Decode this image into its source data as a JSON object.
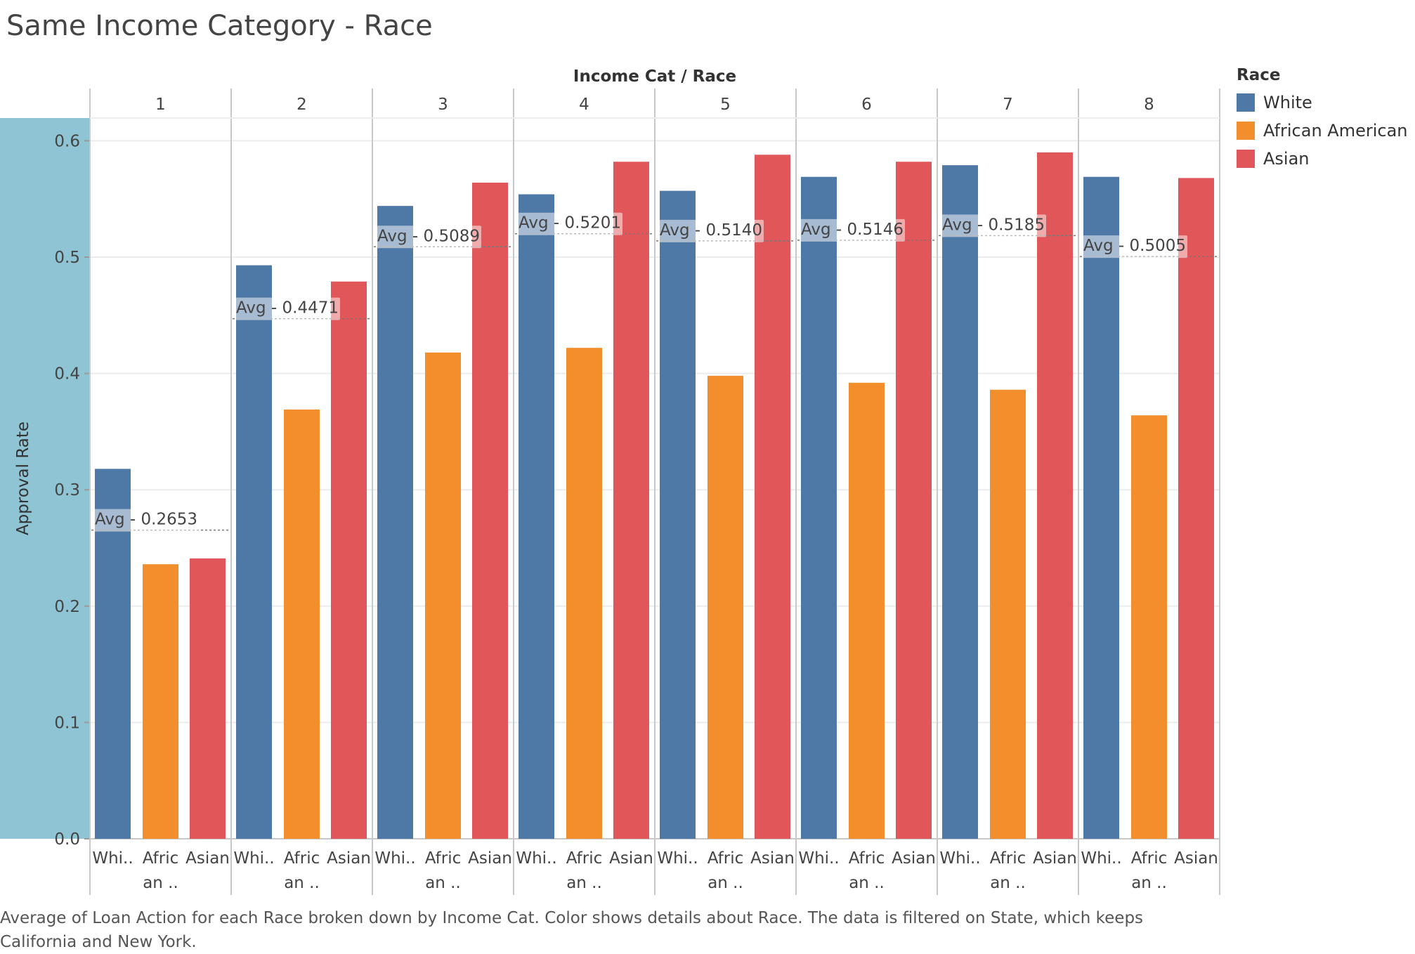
{
  "title": "Same Income Category - Race",
  "footnote": "Average of Loan Action for each Race broken down by Income Cat.  Color shows details about Race. The data is filtered on State, which keeps California and New York.",
  "chart_data": {
    "type": "bar",
    "title": "Same Income Category - Race",
    "column_header": "Income Cat  /  Race",
    "ylabel": "Approval Rate",
    "ylim": [
      0,
      0.62
    ],
    "yticks": [
      "0.0",
      "0.1",
      "0.2",
      "0.3",
      "0.4",
      "0.5",
      "0.6"
    ],
    "grid": true,
    "legend_title": "Race",
    "legend_position": "right",
    "colors": {
      "White": "#4e79a7",
      "African American": "#f28e2b",
      "Asian": "#e15759"
    },
    "races": [
      "White",
      "African American",
      "Asian"
    ],
    "race_tick_labels": [
      [
        "Whi.."
      ],
      [
        "Afric",
        "an .."
      ],
      [
        "Asian"
      ]
    ],
    "groups": [
      {
        "label": "1",
        "values": [
          0.318,
          0.236,
          0.241
        ],
        "avg_label": "Avg - 0.2653",
        "avg": 0.2653
      },
      {
        "label": "2",
        "values": [
          0.493,
          0.369,
          0.479
        ],
        "avg_label": "Avg - 0.4471",
        "avg": 0.4471
      },
      {
        "label": "3",
        "values": [
          0.544,
          0.418,
          0.564
        ],
        "avg_label": "Avg - 0.5089",
        "avg": 0.5089
      },
      {
        "label": "4",
        "values": [
          0.554,
          0.422,
          0.582
        ],
        "avg_label": "Avg - 0.5201",
        "avg": 0.5201
      },
      {
        "label": "5",
        "values": [
          0.557,
          0.398,
          0.588
        ],
        "avg_label": "Avg - 0.5140",
        "avg": 0.514
      },
      {
        "label": "6",
        "values": [
          0.569,
          0.392,
          0.582
        ],
        "avg_label": "Avg - 0.5146",
        "avg": 0.5146
      },
      {
        "label": "7",
        "values": [
          0.579,
          0.386,
          0.59
        ],
        "avg_label": "Avg - 0.5185",
        "avg": 0.5185
      },
      {
        "label": "8",
        "values": [
          0.569,
          0.364,
          0.568
        ],
        "avg_label": "Avg - 0.5005",
        "avg": 0.5005
      }
    ]
  }
}
